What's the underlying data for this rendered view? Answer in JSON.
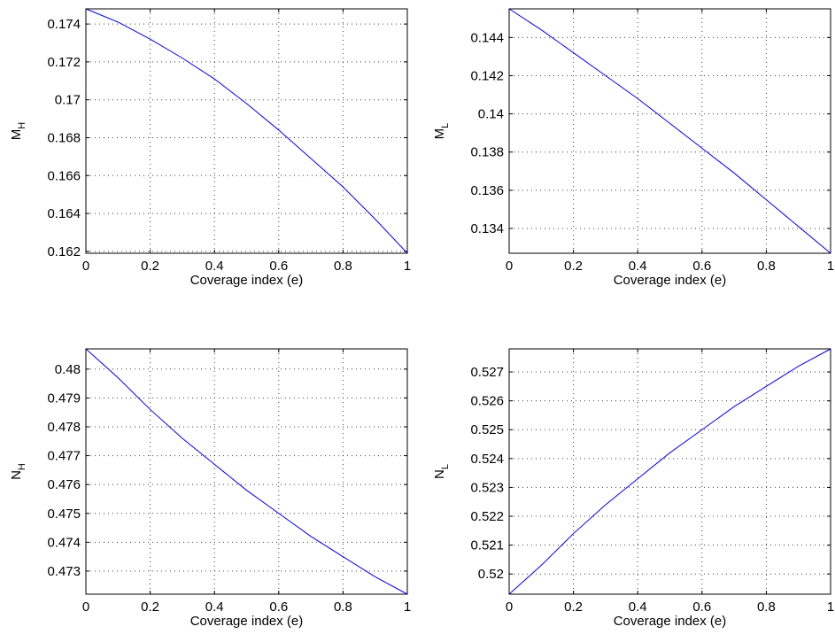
{
  "chart_data": [
    {
      "type": "line",
      "xlabel": "Coverage index (e)",
      "ylabel": {
        "main": "M",
        "sub": "H"
      },
      "xlim": [
        0,
        1
      ],
      "ylim": [
        0.1619,
        0.1748
      ],
      "xticks": [
        0,
        0.2,
        0.4,
        0.6,
        0.8,
        1
      ],
      "xtick_labels": [
        "0",
        "0.2",
        "0.4",
        "0.6",
        "0.8",
        "1"
      ],
      "yticks": [
        0.162,
        0.164,
        0.166,
        0.168,
        0.17,
        0.172,
        0.174
      ],
      "ytick_labels": [
        "0.162",
        "0.164",
        "0.166",
        "0.168",
        "0.17",
        "0.172",
        "0.174"
      ],
      "grid": true,
      "color": "#0000ff",
      "x": [
        0,
        0.1,
        0.2,
        0.3,
        0.4,
        0.5,
        0.6,
        0.7,
        0.8,
        0.9,
        1
      ],
      "y": [
        0.1748,
        0.1741,
        0.1732,
        0.1722,
        0.1711,
        0.1698,
        0.1684,
        0.1669,
        0.1654,
        0.1637,
        0.1619
      ]
    },
    {
      "type": "line",
      "xlabel": "Coverage index (e)",
      "ylabel": {
        "main": "M",
        "sub": "L"
      },
      "xlim": [
        0,
        1
      ],
      "ylim": [
        0.1327,
        0.1455
      ],
      "xticks": [
        0,
        0.2,
        0.4,
        0.6,
        0.8,
        1
      ],
      "xtick_labels": [
        "0",
        "0.2",
        "0.4",
        "0.6",
        "0.8",
        "1"
      ],
      "yticks": [
        0.134,
        0.136,
        0.138,
        0.14,
        0.142,
        0.144
      ],
      "ytick_labels": [
        "0.134",
        "0.136",
        "0.138",
        "0.14",
        "0.142",
        "0.144"
      ],
      "grid": true,
      "color": "#0000ff",
      "x": [
        0,
        0.1,
        0.2,
        0.3,
        0.4,
        0.5,
        0.6,
        0.7,
        0.8,
        0.9,
        1
      ],
      "y": [
        0.1455,
        0.1444,
        0.1432,
        0.142,
        0.1408,
        0.1395,
        0.1382,
        0.1369,
        0.1355,
        0.1341,
        0.1327
      ]
    },
    {
      "type": "line",
      "xlabel": "Coverage index (e)",
      "ylabel": {
        "main": "N",
        "sub": "H"
      },
      "xlim": [
        0,
        1
      ],
      "ylim": [
        0.4722,
        0.4807
      ],
      "xticks": [
        0,
        0.2,
        0.4,
        0.6,
        0.8,
        1
      ],
      "xtick_labels": [
        "0",
        "0.2",
        "0.4",
        "0.6",
        "0.8",
        "1"
      ],
      "yticks": [
        0.473,
        0.474,
        0.475,
        0.476,
        0.477,
        0.478,
        0.479,
        0.48
      ],
      "ytick_labels": [
        "0.473",
        "0.474",
        "0.475",
        "0.476",
        "0.477",
        "0.478",
        "0.479",
        "0.48"
      ],
      "grid": true,
      "color": "#0000ff",
      "x": [
        0,
        0.1,
        0.2,
        0.3,
        0.4,
        0.5,
        0.6,
        0.7,
        0.8,
        0.9,
        1
      ],
      "y": [
        0.4807,
        0.4797,
        0.4786,
        0.4776,
        0.4767,
        0.4758,
        0.475,
        0.4742,
        0.4735,
        0.4728,
        0.4722
      ]
    },
    {
      "type": "line",
      "xlabel": "Coverage index (e)",
      "ylabel": {
        "main": "N",
        "sub": "L"
      },
      "xlim": [
        0,
        1
      ],
      "ylim": [
        0.5193,
        0.5278
      ],
      "xticks": [
        0,
        0.2,
        0.4,
        0.6,
        0.8,
        1
      ],
      "xtick_labels": [
        "0",
        "0.2",
        "0.4",
        "0.6",
        "0.8",
        "1"
      ],
      "yticks": [
        0.52,
        0.521,
        0.522,
        0.523,
        0.524,
        0.525,
        0.526,
        0.527
      ],
      "ytick_labels": [
        "0.52",
        "0.521",
        "0.522",
        "0.523",
        "0.524",
        "0.525",
        "0.526",
        "0.527"
      ],
      "grid": true,
      "color": "#0000ff",
      "x": [
        0,
        0.1,
        0.2,
        0.3,
        0.4,
        0.5,
        0.6,
        0.7,
        0.8,
        0.9,
        1
      ],
      "y": [
        0.5193,
        0.5203,
        0.5214,
        0.5224,
        0.5233,
        0.5242,
        0.525,
        0.5258,
        0.5265,
        0.5272,
        0.5278
      ]
    }
  ]
}
